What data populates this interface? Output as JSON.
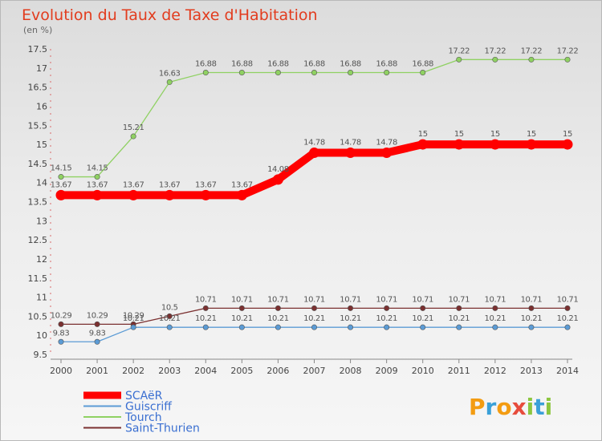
{
  "chart_data": {
    "type": "line",
    "title": "Evolution du Taux de Taxe d'Habitation",
    "subtitle": "(en %)",
    "xlabel": "",
    "ylabel": "",
    "x": [
      "2000",
      "2001",
      "2002",
      "2003",
      "2004",
      "2005",
      "2006",
      "2007",
      "2008",
      "2009",
      "2010",
      "2011",
      "2012",
      "2013",
      "2014"
    ],
    "ylim": [
      9.5,
      17.5
    ],
    "yticks": [
      "9.5",
      "10",
      "10.5",
      "11",
      "11.5",
      "12",
      "12.5",
      "13",
      "13.5",
      "14",
      "14.5",
      "15",
      "15.5",
      "16",
      "16.5",
      "17",
      "17.5"
    ],
    "series": [
      {
        "name": "SCAëR",
        "color": "#ff0000",
        "values": [
          13.67,
          13.67,
          13.67,
          13.67,
          13.67,
          13.67,
          14.08,
          14.78,
          14.78,
          14.78,
          15,
          15,
          15,
          15,
          15
        ],
        "labels": [
          "13.67",
          "13.67",
          "13.67",
          "13.67",
          "13.67",
          "13.67",
          "14.08",
          "14.78",
          "14.78",
          "14.78",
          "15",
          "15",
          "15",
          "15",
          "15"
        ]
      },
      {
        "name": "Guiscriff",
        "color": "#5b9bd5",
        "values": [
          9.83,
          9.83,
          10.21,
          10.21,
          10.21,
          10.21,
          10.21,
          10.21,
          10.21,
          10.21,
          10.21,
          10.21,
          10.21,
          10.21,
          10.21
        ],
        "labels": [
          "9.83",
          "9.83",
          "10.21",
          "10.21",
          "10.21",
          "10.21",
          "10.21",
          "10.21",
          "10.21",
          "10.21",
          "10.21",
          "10.21",
          "10.21",
          "10.21",
          "10.21"
        ]
      },
      {
        "name": "Tourch",
        "color": "#8fd162",
        "values": [
          14.15,
          14.15,
          15.21,
          16.63,
          16.88,
          16.88,
          16.88,
          16.88,
          16.88,
          16.88,
          16.88,
          17.22,
          17.22,
          17.22,
          17.22
        ],
        "labels": [
          "14.15",
          "14.15",
          "15.21",
          "16.63",
          "16.88",
          "16.88",
          "16.88",
          "16.88",
          "16.88",
          "16.88",
          "16.88",
          "17.22",
          "17.22",
          "17.22",
          "17.22"
        ]
      },
      {
        "name": "Saint-Thurien",
        "color": "#7b3030",
        "values": [
          10.29,
          10.29,
          10.29,
          10.5,
          10.71,
          10.71,
          10.71,
          10.71,
          10.71,
          10.71,
          10.71,
          10.71,
          10.71,
          10.71,
          10.71
        ],
        "labels": [
          "10.29",
          "10.29",
          "10.29",
          "10.5",
          "10.71",
          "10.71",
          "10.71",
          "10.71",
          "10.71",
          "10.71",
          "10.71",
          "10.71",
          "10.71",
          "10.71",
          "10.71"
        ]
      }
    ],
    "legend_position": "bottom-left"
  },
  "brand": {
    "text": "Proxiti",
    "letters": [
      "P",
      "r",
      "o",
      "x",
      "i",
      "t",
      "i"
    ]
  }
}
